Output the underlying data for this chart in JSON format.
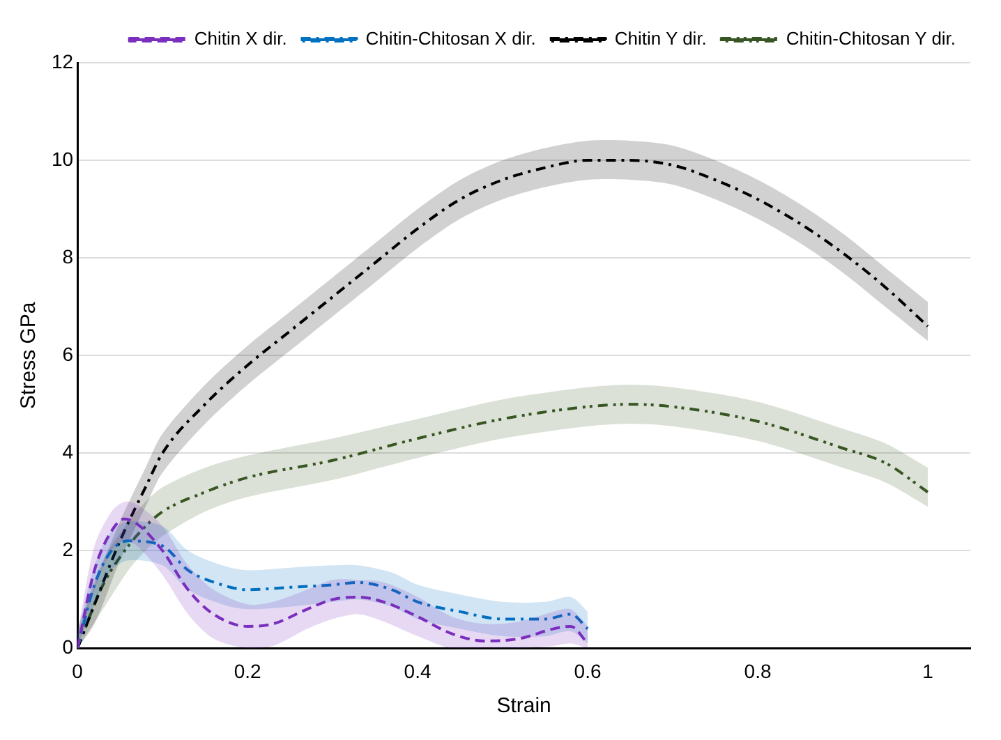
{
  "chart_data": {
    "type": "line",
    "xlabel": "Strain",
    "ylabel": "Stress GPa",
    "xlim": [
      0,
      1.05
    ],
    "ylim": [
      0,
      12
    ],
    "xticks": [
      0,
      0.2,
      0.4,
      0.6,
      0.8,
      1
    ],
    "yticks": [
      0,
      2,
      4,
      6,
      8,
      10,
      12
    ],
    "grid": "y",
    "legend": "top right",
    "marker": "none",
    "series": [
      {
        "name": "Chitin X dir.",
        "color": "#7b2fbe",
        "line_style": "dashed",
        "x": [
          0,
          0.02,
          0.04,
          0.055,
          0.07,
          0.1,
          0.13,
          0.16,
          0.2,
          0.23,
          0.27,
          0.3,
          0.33,
          0.36,
          0.4,
          0.44,
          0.48,
          0.52,
          0.56,
          0.58,
          0.6
        ],
        "values": [
          0,
          1.6,
          2.4,
          2.65,
          2.55,
          2.0,
          1.2,
          0.7,
          0.45,
          0.5,
          0.8,
          1.0,
          1.05,
          0.95,
          0.65,
          0.3,
          0.15,
          0.2,
          0.4,
          0.45,
          0.1
        ],
        "lower": [
          0,
          1.2,
          2.0,
          2.2,
          2.1,
          1.5,
          0.7,
          0.2,
          0,
          0.05,
          0.4,
          0.6,
          0.7,
          0.55,
          0.25,
          0,
          0,
          0,
          0.05,
          0.1,
          0
        ],
        "upper": [
          0.3,
          2.1,
          2.8,
          3.0,
          2.95,
          2.5,
          1.7,
          1.2,
          0.9,
          0.95,
          1.2,
          1.4,
          1.4,
          1.35,
          1.05,
          0.65,
          0.5,
          0.55,
          0.75,
          0.8,
          0.45
        ]
      },
      {
        "name": "Chitin-Chitosan X dir.",
        "color": "#0070c0",
        "line_style": "dashed",
        "x": [
          0,
          0.02,
          0.04,
          0.06,
          0.1,
          0.13,
          0.17,
          0.2,
          0.25,
          0.3,
          0.33,
          0.37,
          0.4,
          0.45,
          0.5,
          0.55,
          0.58,
          0.6
        ],
        "values": [
          0,
          1.3,
          2.0,
          2.2,
          2.1,
          1.6,
          1.3,
          1.2,
          1.25,
          1.3,
          1.35,
          1.2,
          0.95,
          0.75,
          0.6,
          0.6,
          0.7,
          0.4
        ],
        "lower": [
          0,
          0.9,
          1.6,
          1.8,
          1.7,
          1.2,
          0.9,
          0.8,
          0.85,
          0.95,
          1.0,
          0.85,
          0.6,
          0.4,
          0.25,
          0.25,
          0.35,
          0.1
        ],
        "upper": [
          0.3,
          1.7,
          2.4,
          2.6,
          2.5,
          2.0,
          1.7,
          1.6,
          1.65,
          1.7,
          1.7,
          1.55,
          1.3,
          1.1,
          0.95,
          0.95,
          1.05,
          0.75
        ]
      },
      {
        "name": "Chitin Y dir.",
        "color": "#000000",
        "line_style": "dashed",
        "x": [
          0,
          0.02,
          0.05,
          0.08,
          0.1,
          0.15,
          0.2,
          0.25,
          0.3,
          0.35,
          0.4,
          0.45,
          0.5,
          0.55,
          0.6,
          0.65,
          0.7,
          0.75,
          0.8,
          0.85,
          0.9,
          0.95,
          1.0
        ],
        "values": [
          0,
          0.9,
          2.2,
          3.3,
          4.0,
          5.0,
          5.8,
          6.5,
          7.2,
          7.9,
          8.6,
          9.2,
          9.6,
          9.85,
          10.0,
          10.0,
          9.9,
          9.6,
          9.2,
          8.7,
          8.1,
          7.4,
          6.6
        ],
        "lower": [
          0,
          0.5,
          1.8,
          2.9,
          3.6,
          4.6,
          5.4,
          6.1,
          6.8,
          7.5,
          8.2,
          8.8,
          9.2,
          9.45,
          9.6,
          9.6,
          9.5,
          9.2,
          8.8,
          8.3,
          7.7,
          7.0,
          6.3
        ],
        "upper": [
          0.3,
          1.3,
          2.6,
          3.7,
          4.4,
          5.4,
          6.2,
          6.9,
          7.6,
          8.3,
          9.0,
          9.6,
          10.0,
          10.25,
          10.4,
          10.4,
          10.3,
          10.0,
          9.6,
          9.1,
          8.5,
          7.8,
          7.1
        ]
      },
      {
        "name": "Chitin-Chitosan Y dir.",
        "color": "#375623",
        "line_style": "dashed",
        "x": [
          0,
          0.03,
          0.06,
          0.08,
          0.1,
          0.15,
          0.2,
          0.3,
          0.4,
          0.5,
          0.6,
          0.65,
          0.7,
          0.8,
          0.9,
          0.95,
          1.0
        ],
        "values": [
          0,
          1.3,
          2.1,
          2.5,
          2.8,
          3.2,
          3.5,
          3.85,
          4.3,
          4.7,
          4.95,
          5.0,
          4.95,
          4.65,
          4.1,
          3.8,
          3.2
        ],
        "lower": [
          0,
          0.8,
          1.6,
          2.0,
          2.3,
          2.8,
          3.1,
          3.45,
          3.9,
          4.3,
          4.55,
          4.6,
          4.55,
          4.25,
          3.7,
          3.4,
          2.9
        ],
        "upper": [
          0.4,
          1.8,
          2.6,
          3.0,
          3.3,
          3.7,
          3.95,
          4.3,
          4.7,
          5.1,
          5.35,
          5.4,
          5.35,
          5.05,
          4.5,
          4.2,
          3.7
        ]
      }
    ]
  }
}
